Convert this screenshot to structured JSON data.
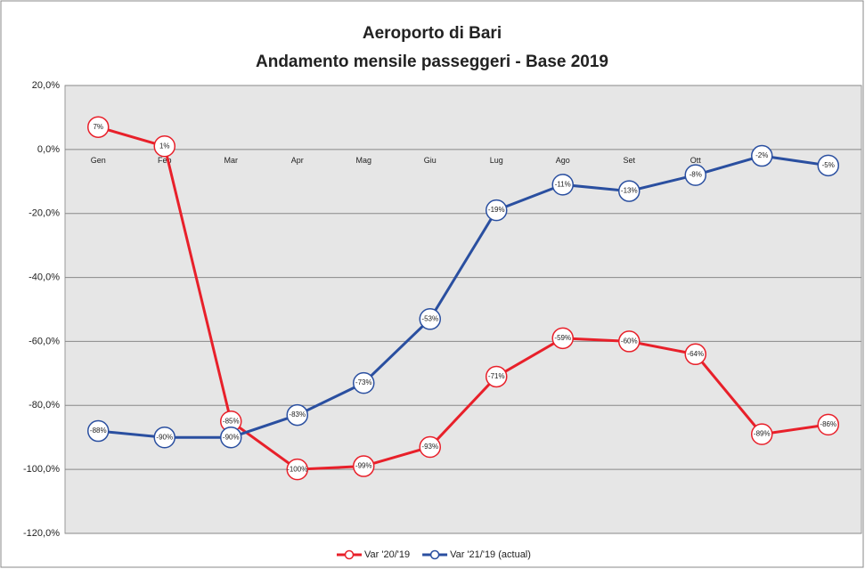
{
  "chart_data": {
    "type": "line",
    "title": [
      "Aeroporto di Bari",
      "Andamento mensile passeggeri - Base 2019"
    ],
    "categories": [
      "Gen",
      "Feb",
      "Mar",
      "Apr",
      "Mag",
      "Giu",
      "Lug",
      "Ago",
      "Set",
      "Ott",
      "Nov",
      "Dic"
    ],
    "series": [
      {
        "name": "Var '20/'19",
        "color": "#e8202a",
        "values": [
          7,
          1,
          -85,
          -100,
          -99,
          -93,
          -71,
          -59,
          -60,
          -64,
          -89,
          -86
        ],
        "value_labels": [
          "7%",
          "1%",
          "-85%",
          "-100%",
          "-99%",
          "-93%",
          "-71%",
          "-59%",
          "-60%",
          "-64%",
          "-89%",
          "-86%"
        ]
      },
      {
        "name": "Var '21/'19 (actual)",
        "color": "#2a4fa0",
        "values": [
          -88,
          -90,
          -90,
          -83,
          -73,
          -53,
          -19,
          -11,
          -13,
          -8,
          -2,
          -5
        ],
        "value_labels": [
          "-88%",
          "-90%",
          "-90%",
          "-83%",
          "-73%",
          "-53%",
          "-19%",
          "-11%",
          "-13%",
          "-8%",
          "-2%",
          "-5%"
        ]
      }
    ],
    "ylim": [
      -120,
      20
    ],
    "yticks": [
      {
        "value": 20,
        "label": "20,0%"
      },
      {
        "value": 0,
        "label": "0,0%"
      },
      {
        "value": -20,
        "label": "-20,0%"
      },
      {
        "value": -40,
        "label": "-40,0%"
      },
      {
        "value": -60,
        "label": "-60,0%"
      },
      {
        "value": -80,
        "label": "-80,0%"
      },
      {
        "value": -100,
        "label": "-100,0%"
      },
      {
        "value": -120,
        "label": "-120,0%"
      }
    ],
    "grid": true,
    "legend": "bottom"
  }
}
